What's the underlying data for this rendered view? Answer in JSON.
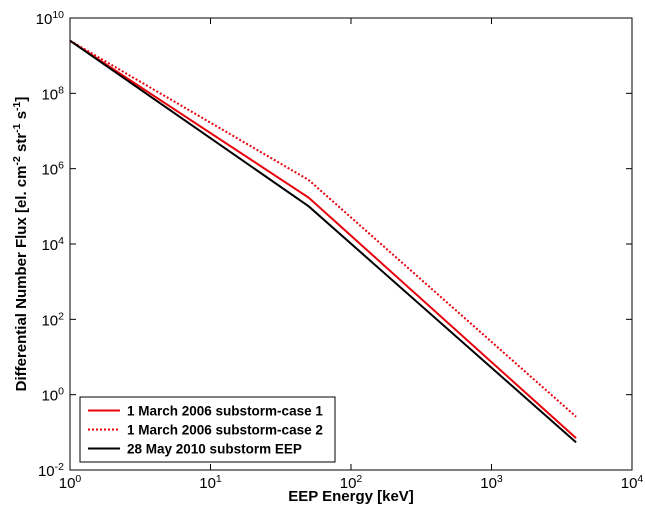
{
  "chart_data": {
    "type": "line",
    "x_label": "EEP Energy [keV]",
    "y_label": "Differential Number Flux  [el. cm^{-2} str^{-1} s^{-1}]",
    "xscale": "log",
    "yscale": "log",
    "xlim": [
      1,
      10000
    ],
    "ylim": [
      0.01,
      10000000000
    ],
    "xticks": [
      {
        "value": 1,
        "label": "10^{0}"
      },
      {
        "value": 10,
        "label": "10^{1}"
      },
      {
        "value": 100,
        "label": "10^{2}"
      },
      {
        "value": 1000,
        "label": "10^{3}"
      },
      {
        "value": 10000,
        "label": "10^{4}"
      }
    ],
    "yticks": [
      {
        "value": 0.01,
        "label": "10^{-2}"
      },
      {
        "value": 1,
        "label": "10^{0}"
      },
      {
        "value": 100,
        "label": "10^{2}"
      },
      {
        "value": 10000,
        "label": "10^{4}"
      },
      {
        "value": 1000000,
        "label": "10^{6}"
      },
      {
        "value": 100000000,
        "label": "10^{8}"
      },
      {
        "value": 10000000000,
        "label": "10^{10}"
      }
    ],
    "legend": "lower left",
    "series": [
      {
        "name": "1 March 2006 substorm-case 1",
        "color": "#e8000b",
        "linestyle": "solid",
        "x": [
          1,
          50,
          4000
        ],
        "values": [
          2500000000,
          170000,
          0.07
        ]
      },
      {
        "name": "1 March 2006 substorm-case 2",
        "color": "#e8000b",
        "linestyle": "dotted",
        "x": [
          1,
          50,
          4000
        ],
        "values": [
          2500000000,
          500000,
          0.26
        ]
      },
      {
        "name": "28 May 2010 substorm EEP",
        "color": "#000000",
        "linestyle": "solid",
        "x": [
          1,
          50,
          4000
        ],
        "values": [
          2500000000,
          100000,
          0.054
        ]
      }
    ]
  }
}
